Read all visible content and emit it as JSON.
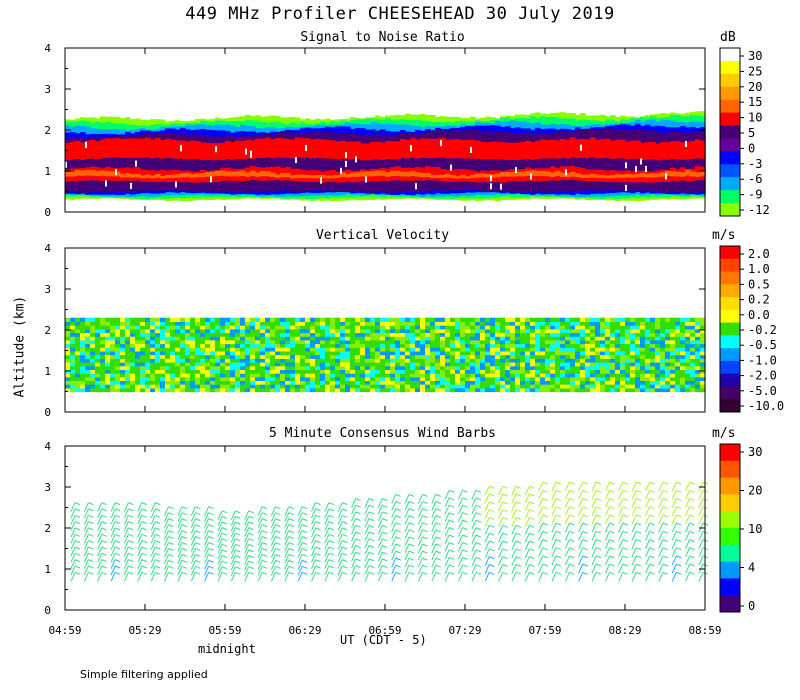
{
  "header": {
    "title": "449 MHz Profiler CHEESEHEAD 30 July 2019",
    "y_axis_label": "Altitude (km)",
    "x_axis_label": "UT  (CDT - 5)",
    "midnight_label": "midnight",
    "footnote": "Simple filtering applied"
  },
  "chart_data": [
    {
      "type": "heatmap",
      "title": "Signal to Noise Ratio",
      "unit": "dB",
      "ylabel": "Altitude (km)",
      "ylim": [
        0,
        4
      ],
      "yticks": [
        "0",
        "1",
        "2",
        "3",
        "4"
      ],
      "colorbar_ticks": [
        "30",
        "25",
        "20",
        "15",
        "10",
        "5",
        "0",
        "-3",
        "-6",
        "-9",
        "-12"
      ],
      "colorbar_colors": [
        "#ffffff",
        "#ffff00",
        "#ffcc00",
        "#ff9900",
        "#ff6600",
        "#ff0000",
        "#440077",
        "#660099",
        "#0000ff",
        "#0055ff",
        "#00aaff",
        "#00ff66",
        "#88ff00"
      ],
      "layers": [
        {
          "z_lo": 0.3,
          "z_hi": 2.25,
          "color": "#88ff00"
        },
        {
          "z_lo": 0.35,
          "z_hi": 2.15,
          "color": "#00ff66"
        },
        {
          "z_lo": 0.4,
          "z_hi": 2.05,
          "color": "#00aaff"
        },
        {
          "z_lo": 0.45,
          "z_hi": 1.95,
          "color": "#0000ff"
        },
        {
          "z_lo": 0.5,
          "z_hi": 1.85,
          "color": "#440077"
        },
        {
          "z_lo": 1.3,
          "z_hi": 1.75,
          "color": "#ff0000"
        },
        {
          "z_lo": 0.75,
          "z_hi": 1.05,
          "color": "#ff0000"
        },
        {
          "z_lo": 0.85,
          "z_hi": 0.95,
          "color": "#ff6600"
        }
      ]
    },
    {
      "type": "heatmap",
      "title": "Vertical Velocity",
      "unit": "m/s",
      "ylabel": "Altitude (km)",
      "ylim": [
        0,
        4
      ],
      "yticks": [
        "0",
        "1",
        "2",
        "3",
        "4"
      ],
      "colorbar_ticks": [
        "2.0",
        "1.0",
        "0.5",
        "0.2",
        "0.0",
        "-0.2",
        "-0.5",
        "-1.0",
        "-2.0",
        "-5.0",
        "-10.0"
      ],
      "colorbar_colors": [
        "#ff0000",
        "#ff4400",
        "#ff7700",
        "#ffaa00",
        "#ffdd00",
        "#ffff00",
        "#33dd00",
        "#00ffff",
        "#0099ff",
        "#0044ff",
        "#2200aa",
        "#440066",
        "#330033"
      ],
      "data_range_km": [
        0.5,
        2.3
      ],
      "palette": [
        "#33dd00",
        "#00ffff",
        "#ffff00",
        "#0099ff",
        "#33dd00",
        "#88ee00"
      ]
    },
    {
      "type": "scatter",
      "title": "5 Minute Consensus Wind Barbs",
      "unit": "m/s",
      "ylabel": "Altitude (km)",
      "ylim": [
        0,
        4
      ],
      "yticks": [
        "0",
        "1",
        "2",
        "3",
        "4"
      ],
      "colorbar_ticks": [
        "30",
        "20",
        "10",
        "4",
        "0"
      ],
      "colorbar_colors": [
        "#ff0000",
        "#ff5500",
        "#ff9900",
        "#ffcc00",
        "#99ff00",
        "#33ff00",
        "#00ff99",
        "#0099ff",
        "#0000ff",
        "#440077"
      ],
      "barb_color": "#33dd88",
      "barb_top_km": [
        2.4,
        2.4,
        2.3,
        2.2,
        2.3,
        2.4,
        2.5,
        2.6,
        2.7,
        2.8,
        2.9,
        2.9,
        2.9,
        2.9
      ],
      "barb_bottom_km": 0.7
    }
  ],
  "xaxis": {
    "tick_labels": [
      "04:59",
      "05:29",
      "05:59",
      "06:29",
      "06:59",
      "07:29",
      "07:59",
      "08:29",
      "08:59"
    ]
  }
}
